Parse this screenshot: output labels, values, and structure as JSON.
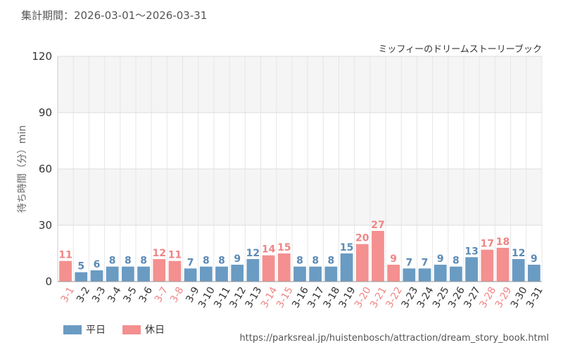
{
  "header": {
    "period_label": "集計期間：2026-03-01～2026-03-31"
  },
  "footer": {
    "source_url": "https://parksreal.jp/huistenbosch/attraction/dream_story_book.html"
  },
  "colors": {
    "weekday": "#6a9bc3",
    "holiday": "#f4908f",
    "weekday_text": "#5b8ab5",
    "holiday_text": "#f08585"
  },
  "chart_data": {
    "type": "bar",
    "title": "ミッフィーのドリームストーリーブック",
    "ylabel": "待ち時間（分）min",
    "xlabel": "",
    "ylim": [
      0,
      120
    ],
    "yticks": [
      0,
      30,
      60,
      90,
      120
    ],
    "grid": true,
    "legend_position": "bottom-left",
    "categories": [
      "3-1",
      "3-2",
      "3-3",
      "3-4",
      "3-5",
      "3-6",
      "3-7",
      "3-8",
      "3-9",
      "3-10",
      "3-11",
      "3-12",
      "3-13",
      "3-14",
      "3-15",
      "3-16",
      "3-17",
      "3-18",
      "3-19",
      "3-20",
      "3-21",
      "3-22",
      "3-23",
      "3-24",
      "3-25",
      "3-26",
      "3-27",
      "3-28",
      "3-29",
      "3-30",
      "3-31"
    ],
    "values": [
      11,
      5,
      6,
      8,
      8,
      8,
      12,
      11,
      7,
      8,
      8,
      9,
      12,
      14,
      15,
      8,
      8,
      8,
      15,
      20,
      27,
      9,
      7,
      7,
      9,
      8,
      13,
      17,
      18,
      12,
      9
    ],
    "day_type": [
      "休日",
      "平日",
      "平日",
      "平日",
      "平日",
      "平日",
      "休日",
      "休日",
      "平日",
      "平日",
      "平日",
      "平日",
      "平日",
      "休日",
      "休日",
      "平日",
      "平日",
      "平日",
      "平日",
      "休日",
      "休日",
      "休日",
      "平日",
      "平日",
      "平日",
      "平日",
      "平日",
      "休日",
      "休日",
      "平日",
      "平日"
    ],
    "legend": [
      {
        "key": "平日",
        "label": "平日"
      },
      {
        "key": "休日",
        "label": "休日"
      }
    ]
  }
}
